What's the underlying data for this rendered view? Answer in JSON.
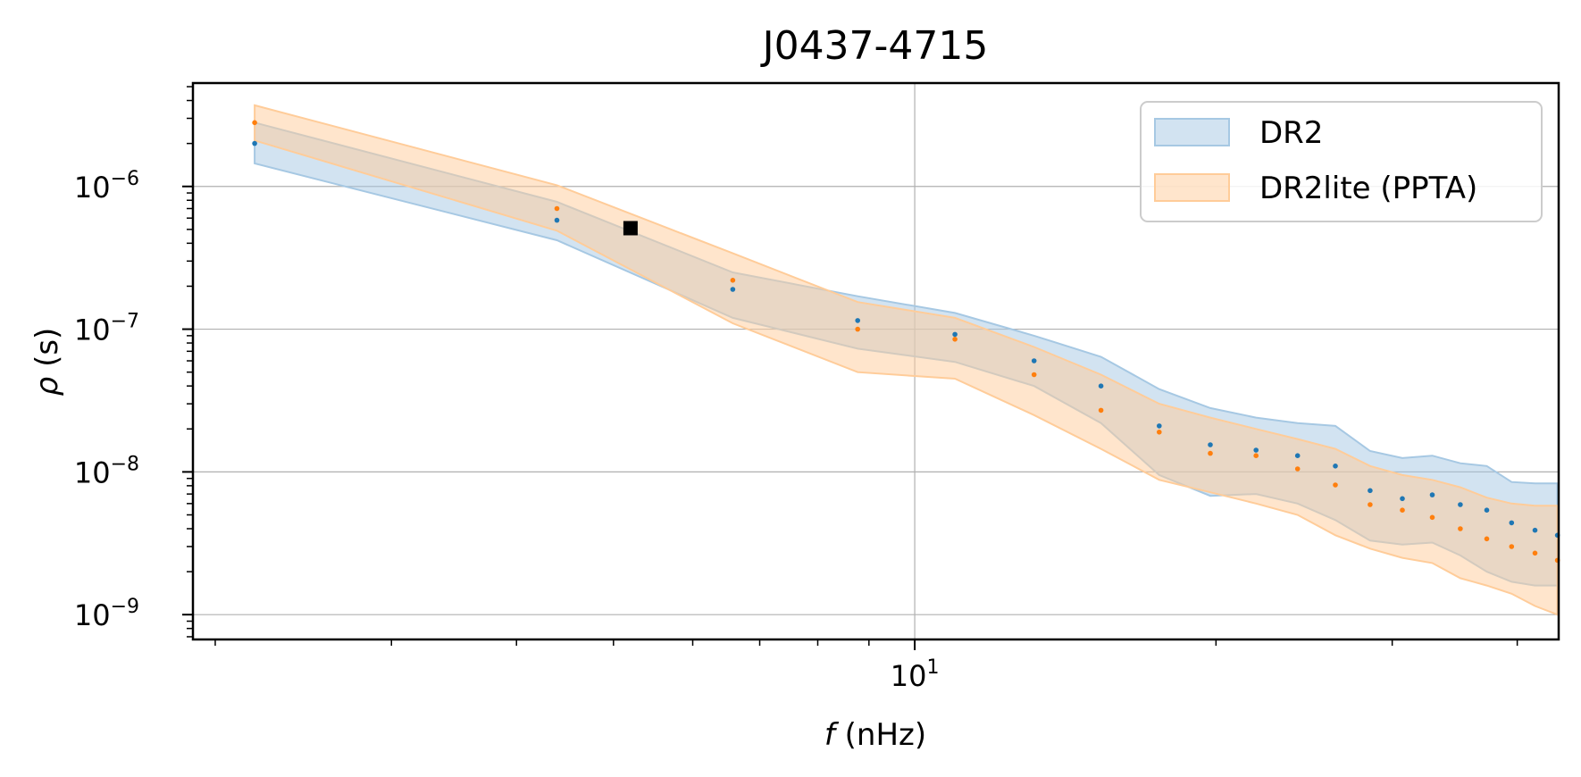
{
  "chart_data": {
    "type": "area",
    "title": "J0437-4715",
    "xlabel_symbol": "f",
    "xlabel_unit": " (nHz)",
    "ylabel_symbol": "ρ",
    "ylabel_unit": " (s)",
    "x_scale": "log",
    "y_scale": "log",
    "xlim": [
      1.9,
      44.0
    ],
    "ylim": [
      6.7e-10,
      5.3e-06
    ],
    "x_ticks": [
      {
        "value": 10,
        "base": "10",
        "exp": "1"
      }
    ],
    "y_ticks": [
      {
        "value": 1e-09,
        "base": "10",
        "exp": "−9"
      },
      {
        "value": 1e-08,
        "base": "10",
        "exp": "−8"
      },
      {
        "value": 1e-07,
        "base": "10",
        "exp": "−7"
      },
      {
        "value": 1e-06,
        "base": "10",
        "exp": "−6"
      }
    ],
    "grid": true,
    "legend_position": "top-right",
    "x": [
      2.19,
      4.39,
      6.58,
      8.77,
      10.97,
      13.16,
      15.35,
      17.55,
      19.74,
      21.93,
      24.13,
      26.32,
      28.51,
      30.71,
      32.9,
      35.09,
      37.29,
      39.48,
      41.67,
      43.87
    ],
    "series": [
      {
        "name": "DR2",
        "color": "#1f77b4",
        "fill": "#a6c8e3",
        "median": [
          2e-06,
          5.8e-07,
          1.9e-07,
          1.15e-07,
          9.2e-08,
          6e-08,
          4e-08,
          2.1e-08,
          1.55e-08,
          1.42e-08,
          1.3e-08,
          1.1e-08,
          7.4e-09,
          6.5e-09,
          6.9e-09,
          5.9e-09,
          5.4e-09,
          4.4e-09,
          3.9e-09,
          3.6e-09
        ],
        "upper": [
          2.8e-06,
          7.8e-07,
          2.5e-07,
          1.7e-07,
          1.3e-07,
          9e-08,
          6.4e-08,
          3.8e-08,
          2.8e-08,
          2.4e-08,
          2.2e-08,
          2.1e-08,
          1.4e-08,
          1.25e-08,
          1.3e-08,
          1.15e-08,
          1.1e-08,
          8.5e-09,
          8.3e-09,
          8.3e-09
        ],
        "lower": [
          1.45e-06,
          4.2e-07,
          1.2e-07,
          7.3e-08,
          5.9e-08,
          4e-08,
          2.2e-08,
          9.5e-09,
          6.8e-09,
          7e-09,
          6e-09,
          4.6e-09,
          3.3e-09,
          3.1e-09,
          3.2e-09,
          2.6e-09,
          2e-09,
          1.7e-09,
          1.6e-09,
          1.6e-09
        ]
      },
      {
        "name": "DR2lite (PPTA)",
        "color": "#ff7f0e",
        "fill": "#ffcc99",
        "median": [
          2.8e-06,
          7e-07,
          2.2e-07,
          1e-07,
          8.5e-08,
          4.8e-08,
          2.7e-08,
          1.9e-08,
          1.35e-08,
          1.3e-08,
          1.05e-08,
          8.1e-09,
          5.9e-09,
          5.4e-09,
          4.8e-09,
          4e-09,
          3.4e-09,
          3e-09,
          2.7e-09,
          2.4e-09
        ],
        "upper": [
          3.7e-06,
          1.02e-06,
          3.4e-07,
          1.55e-07,
          1.2e-07,
          7.5e-08,
          4.8e-08,
          3e-08,
          2.4e-08,
          2e-08,
          1.7e-08,
          1.45e-08,
          1.1e-08,
          9.5e-09,
          8.8e-09,
          7.8e-09,
          6.6e-09,
          6e-09,
          5.8e-09,
          5.8e-09
        ],
        "lower": [
          2.1e-06,
          4.9e-07,
          1.1e-07,
          5e-08,
          4.5e-08,
          2.5e-08,
          1.45e-08,
          8.8e-09,
          7.2e-09,
          6e-09,
          5e-09,
          3.6e-09,
          2.9e-09,
          2.5e-09,
          2.3e-09,
          1.8e-09,
          1.6e-09,
          1.4e-09,
          1.15e-09,
          1e-09
        ]
      }
    ],
    "marker": {
      "x": 5.2,
      "y": 5.1e-07,
      "shape": "square",
      "color": "#000000"
    }
  }
}
